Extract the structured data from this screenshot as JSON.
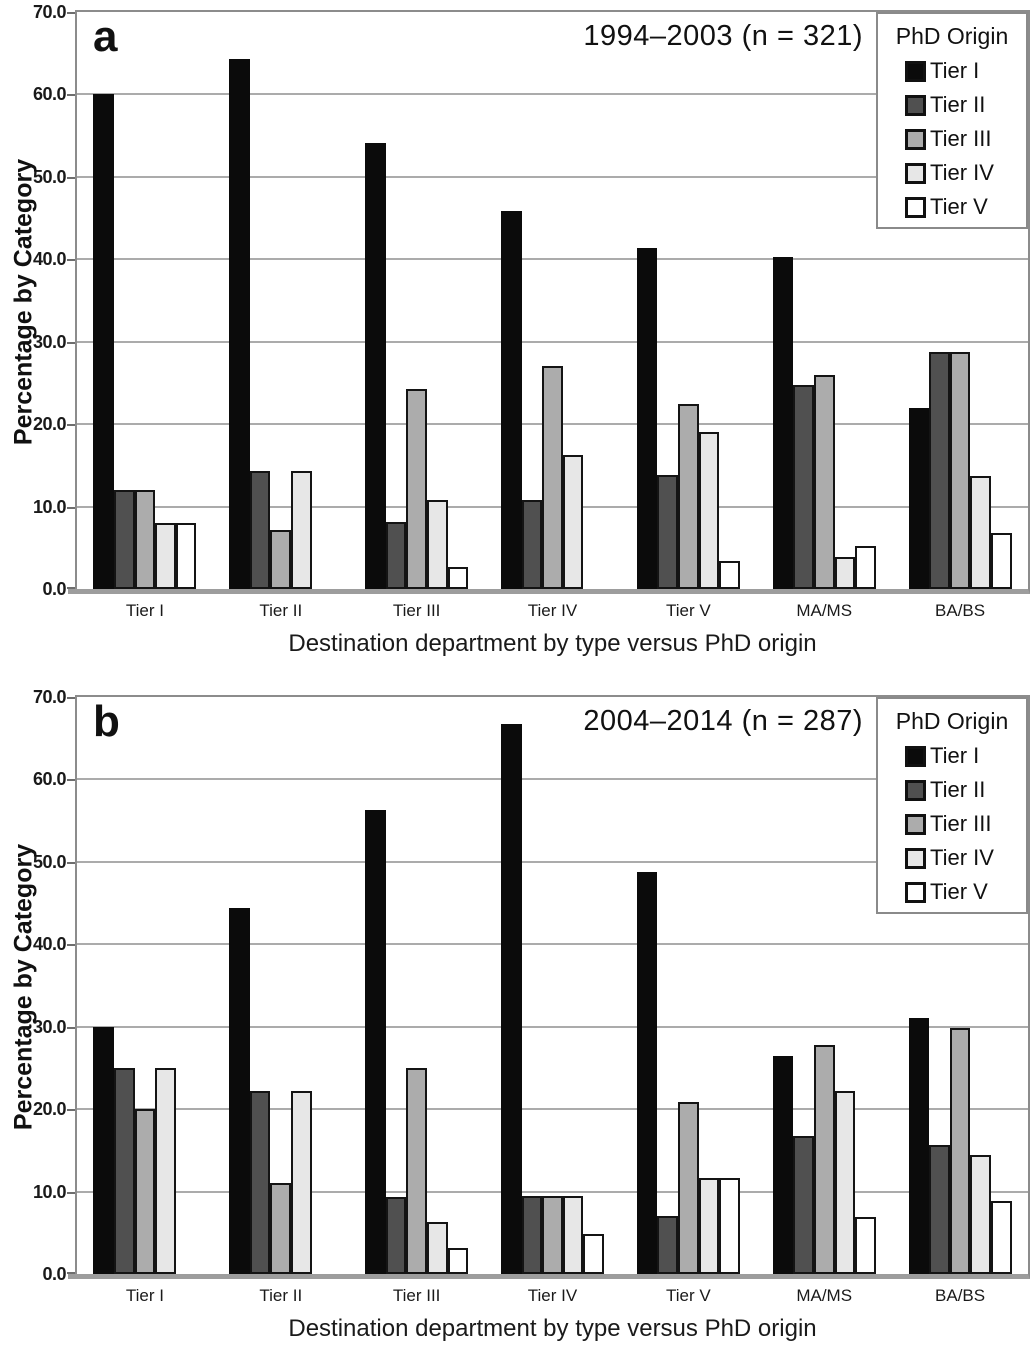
{
  "chart_data": [
    {
      "type": "bar",
      "panel_label": "a",
      "title": "1994–2003 (n = 321)",
      "n": 321,
      "xlabel": "Destination department by type versus PhD origin",
      "ylabel": "Percentage by Category",
      "ylim": [
        0,
        70
      ],
      "yticks": [
        "0.0",
        "10.0",
        "20.0",
        "30.0",
        "40.0",
        "50.0",
        "60.0",
        "70.0"
      ],
      "grid": true,
      "legend_title": "PhD Origin",
      "legend_position": "top-right",
      "categories": [
        "Tier I",
        "Tier II",
        "Tier III",
        "Tier IV",
        "Tier V",
        "MA/MS",
        "BA/BS"
      ],
      "series": [
        {
          "name": "Tier I",
          "color": "#0b0b0b",
          "values": [
            60.0,
            64.3,
            54.1,
            45.9,
            41.4,
            40.3,
            21.9
          ]
        },
        {
          "name": "Tier II",
          "color": "#505050",
          "values": [
            12.0,
            14.3,
            8.1,
            10.8,
            13.8,
            24.7,
            28.8
          ]
        },
        {
          "name": "Tier III",
          "color": "#acacac",
          "values": [
            12.0,
            7.1,
            24.3,
            27.0,
            22.4,
            26.0,
            28.8
          ]
        },
        {
          "name": "Tier IV",
          "color": "#e7e7e7",
          "values": [
            8.0,
            14.3,
            10.8,
            16.2,
            19.0,
            3.9,
            13.7
          ]
        },
        {
          "name": "Tier V",
          "color": "#ffffff",
          "values": [
            8.0,
            0.0,
            2.7,
            0.0,
            3.4,
            5.2,
            6.8
          ]
        }
      ]
    },
    {
      "type": "bar",
      "panel_label": "b",
      "title": "2004–2014 (n = 287)",
      "n": 287,
      "xlabel": "Destination department by type versus PhD origin",
      "ylabel": "Percentage by Category",
      "ylim": [
        0,
        70
      ],
      "yticks": [
        "0.0",
        "10.0",
        "20.0",
        "30.0",
        "40.0",
        "50.0",
        "60.0",
        "70.0"
      ],
      "grid": true,
      "legend_title": "PhD Origin",
      "legend_position": "top-right",
      "categories": [
        "Tier I",
        "Tier II",
        "Tier III",
        "Tier IV",
        "Tier V",
        "MA/MS",
        "BA/BS"
      ],
      "series": [
        {
          "name": "Tier I",
          "color": "#0b0b0b",
          "values": [
            30.0,
            44.4,
            56.3,
            66.7,
            48.8,
            26.4,
            31.1
          ]
        },
        {
          "name": "Tier II",
          "color": "#505050",
          "values": [
            25.0,
            22.2,
            9.4,
            9.5,
            7.0,
            16.7,
            15.6
          ]
        },
        {
          "name": "Tier III",
          "color": "#acacac",
          "values": [
            20.0,
            11.1,
            25.0,
            9.5,
            20.9,
            27.8,
            29.9
          ]
        },
        {
          "name": "Tier IV",
          "color": "#e7e7e7",
          "values": [
            25.0,
            22.2,
            6.3,
            9.5,
            11.6,
            22.2,
            14.4
          ]
        },
        {
          "name": "Tier V",
          "color": "#ffffff",
          "values": [
            0.0,
            0.0,
            3.1,
            4.8,
            11.6,
            6.9,
            8.9
          ]
        }
      ]
    }
  ]
}
